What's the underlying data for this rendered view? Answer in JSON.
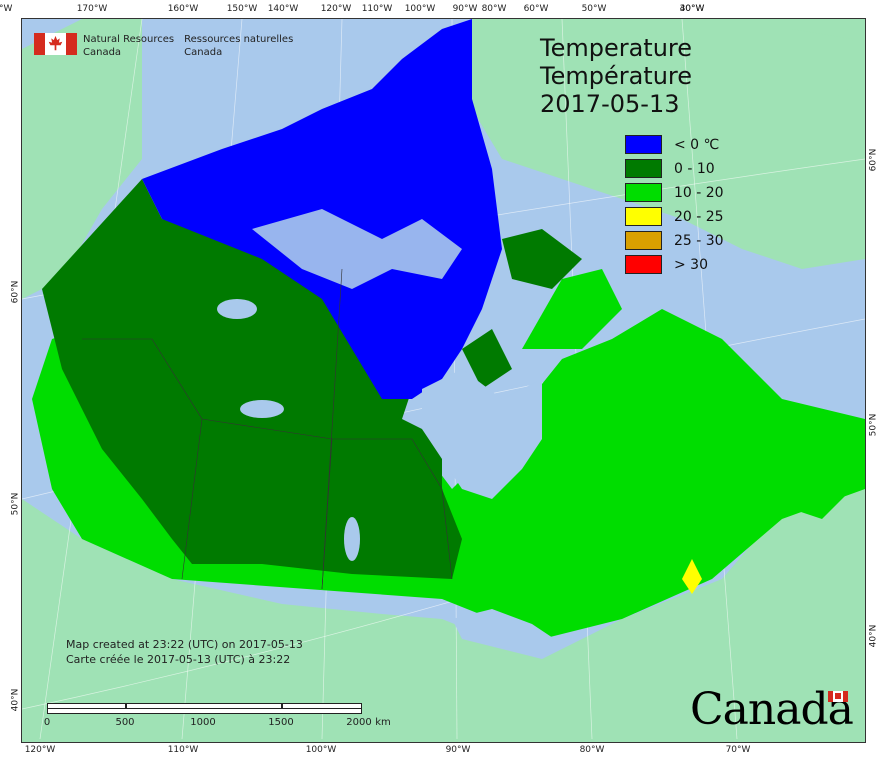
{
  "header": {
    "logo_en_line1": "Natural Resources",
    "logo_en_line2": "Canada",
    "logo_fr_line1": "Ressources naturelles",
    "logo_fr_line2": "Canada"
  },
  "title": {
    "line1": "Temperature",
    "line2": "Température",
    "date": "2017-05-13"
  },
  "legend": [
    {
      "label": "< 0 ℃",
      "color": "#0000ff"
    },
    {
      "label": "0 - 10",
      "color": "#007a00"
    },
    {
      "label": "10 - 20",
      "color": "#00dd00"
    },
    {
      "label": "20 - 25",
      "color": "#ffff00"
    },
    {
      "label": "25 - 30",
      "color": "#d9a000"
    },
    {
      "label": "> 30",
      "color": "#ff0000"
    }
  ],
  "credit": {
    "line1": "Map created at 23:22 (UTC) on 2017-05-13",
    "line2": "Carte créée le 2017-05-13 (UTC) à 23:22"
  },
  "scale": {
    "labels": [
      "0",
      "500",
      "1000",
      "1500",
      "2000"
    ],
    "unit": "km"
  },
  "ticks": {
    "top": [
      "170°W",
      "160°W",
      "150°W",
      "140°W",
      "120°W",
      "110°W",
      "100°W",
      "90°W",
      "80°W",
      "60°W",
      "50°W",
      "40°W",
      "30°W",
      "20°W"
    ],
    "bottom": [
      "120°W",
      "110°W",
      "100°W",
      "90°W",
      "80°W",
      "70°W"
    ],
    "left": [
      "60°N",
      "50°N",
      "40°N"
    ],
    "right": [
      "60°N",
      "50°N",
      "40°N"
    ]
  },
  "wordmark": "Canada",
  "colors": {
    "ocean": "#a9c9ec",
    "foreign_land": "#9fe2b5",
    "cold": "#0000ff",
    "cool": "#007a00",
    "mild": "#00dd00",
    "warm": "#ffff00",
    "lakes": "#a9c9ec"
  }
}
